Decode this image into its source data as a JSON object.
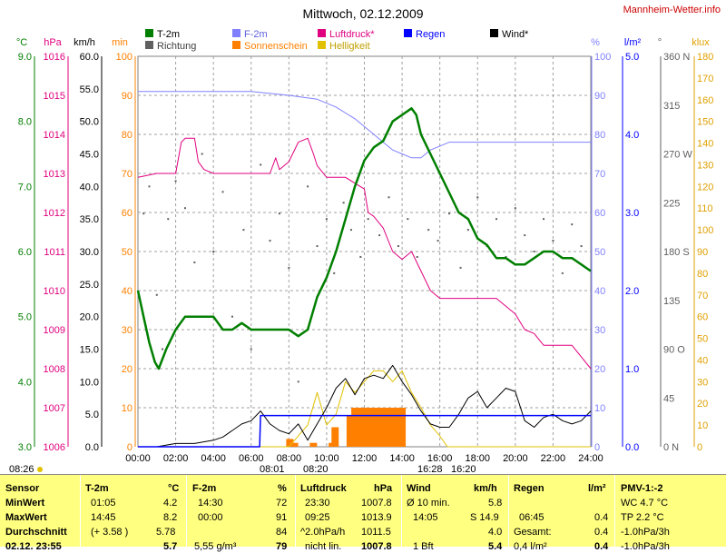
{
  "title": "Mittwoch, 02.12.2009",
  "brand": "Mannheim-Wetter.info",
  "colors": {
    "temp": "#007f00",
    "hum": "#8080ff",
    "pressure": "#e0007f",
    "rain": "#0000ff",
    "sun": "#ff8000",
    "bright": "#e0c000",
    "wind": "#000000",
    "dir": "#606060",
    "grid": "#a0a0a0",
    "table_bg": "#ffff80"
  },
  "legend": {
    "row1": [
      "T-2m",
      "F-2m",
      "Luftdruck*",
      "Regen",
      "Wind*"
    ],
    "row2": [
      "Richtung",
      "Sonnenschein",
      "Helligkeit"
    ]
  },
  "axes": {
    "units": [
      "°C",
      "hPa",
      "km/h",
      "min",
      "%",
      "l/m²",
      "°",
      "klux"
    ],
    "temp_ticks": [
      "9.0",
      "8.0",
      "7.0",
      "6.0",
      "5.0",
      "4.0",
      "3.0"
    ],
    "pressure_ticks": [
      "1016",
      "1015",
      "1014",
      "1013",
      "1012",
      "1011",
      "1010",
      "1009",
      "1008",
      "1007",
      "1006"
    ],
    "wind_ticks": [
      "60.0",
      "55.0",
      "50.0",
      "45.0",
      "40.0",
      "35.0",
      "30.0",
      "25.0",
      "20.0",
      "15.0",
      "10.0",
      "5.0",
      "0.0"
    ],
    "min_ticks": [
      "100",
      "90",
      "80",
      "70",
      "60",
      "50",
      "40",
      "30",
      "20",
      "10",
      "0"
    ],
    "hum_ticks": [
      "100",
      "90",
      "80",
      "70",
      "60",
      "50",
      "40",
      "30",
      "20",
      "10",
      "0"
    ],
    "rain_ticks": [
      "5.0",
      "4.0",
      "3.0",
      "2.0",
      "1.0",
      "0.0"
    ],
    "dir_ticks": [
      "360 N",
      "315",
      "270 W",
      "225",
      "180 S",
      "135",
      "90 O",
      "45",
      "0 N"
    ],
    "klux_ticks": [
      "180",
      "170",
      "160",
      "150",
      "140",
      "130",
      "120",
      "110",
      "100",
      "90",
      "80",
      "70",
      "60",
      "50",
      "40",
      "30",
      "20",
      "10",
      "0"
    ],
    "time_ticks": [
      "00:00",
      "02:00",
      "04:00",
      "06:00",
      "08:00",
      "10:00",
      "12:00",
      "14:00",
      "16:00",
      "18:00",
      "20:00",
      "22:00",
      "24:00"
    ]
  },
  "sun_events": {
    "sunrise_left": "08:01",
    "sunrise_right": "08:20",
    "sunset_left": "16:28",
    "sunset_right": "16:20",
    "daylight_start": "08:26"
  },
  "chart_data": {
    "type": "line",
    "x_unit": "hour",
    "xlim": [
      0,
      24
    ],
    "series": [
      {
        "name": "T-2m",
        "unit": "°C",
        "ylim": [
          3,
          9
        ],
        "x": [
          0,
          0.3,
          0.6,
          0.9,
          1.1,
          1.5,
          2.0,
          2.5,
          3.0,
          3.5,
          4.0,
          4.5,
          5.0,
          5.5,
          6.0,
          6.5,
          7.0,
          7.5,
          8.0,
          8.5,
          9.0,
          9.5,
          10.0,
          10.5,
          11.0,
          11.5,
          12.0,
          12.5,
          13.0,
          13.5,
          14.0,
          14.5,
          14.75,
          15.0,
          15.5,
          16.0,
          16.5,
          17.0,
          17.5,
          18.0,
          18.5,
          19.0,
          19.5,
          20.0,
          20.5,
          21.0,
          21.5,
          22.0,
          22.5,
          23.0,
          23.5,
          24.0
        ],
        "values": [
          5.4,
          5.0,
          4.6,
          4.3,
          4.2,
          4.5,
          4.8,
          5.0,
          5.0,
          5.0,
          5.0,
          4.8,
          4.8,
          4.9,
          4.8,
          4.8,
          4.8,
          4.8,
          4.8,
          4.7,
          4.8,
          5.3,
          5.6,
          6.0,
          6.5,
          7.0,
          7.4,
          7.6,
          7.7,
          8.0,
          8.1,
          8.2,
          8.1,
          7.8,
          7.5,
          7.2,
          6.9,
          6.6,
          6.5,
          6.2,
          6.1,
          5.9,
          5.9,
          5.8,
          5.8,
          5.9,
          6.0,
          6.0,
          5.9,
          5.9,
          5.8,
          5.7
        ]
      },
      {
        "name": "F-2m",
        "unit": "%",
        "ylim": [
          0,
          100
        ],
        "x": [
          0,
          2,
          4,
          6,
          8,
          9.5,
          10.5,
          11.5,
          12,
          12.5,
          13,
          13.5,
          14,
          14.5,
          15,
          15.5,
          16,
          16.5,
          17,
          17.5,
          18,
          19,
          20,
          21,
          22,
          23,
          24
        ],
        "values": [
          91,
          91,
          91,
          91,
          90,
          89,
          87,
          84,
          82,
          80,
          78,
          76,
          75,
          74,
          74,
          76,
          77,
          78,
          78,
          78,
          78,
          78,
          78,
          78,
          78,
          78,
          78
        ]
      },
      {
        "name": "Luftdruck*",
        "unit": "hPa",
        "ylim": [
          1006,
          1016
        ],
        "x": [
          0,
          1.0,
          2.0,
          2.3,
          2.5,
          3.0,
          3.2,
          3.5,
          4.0,
          5.0,
          6.0,
          7.0,
          7.3,
          7.5,
          8.0,
          8.5,
          9.0,
          9.3,
          9.5,
          10.0,
          11.0,
          12.0,
          12.2,
          12.5,
          13.0,
          13.5,
          14.0,
          14.5,
          15.0,
          15.5,
          16.0,
          16.5,
          17.0,
          18.0,
          19.0,
          20.0,
          20.5,
          21.0,
          21.5,
          22.0,
          23.0,
          23.5,
          24.0
        ],
        "values": [
          1012.9,
          1013.0,
          1013.0,
          1013.8,
          1013.9,
          1013.9,
          1013.3,
          1013.1,
          1013.0,
          1013.0,
          1013.0,
          1013.0,
          1013.4,
          1013.1,
          1013.3,
          1013.8,
          1013.9,
          1013.5,
          1013.2,
          1012.9,
          1012.9,
          1012.6,
          1012.0,
          1011.9,
          1011.6,
          1011.0,
          1010.8,
          1011.0,
          1010.5,
          1010.0,
          1009.8,
          1009.8,
          1009.8,
          1009.8,
          1009.8,
          1009.4,
          1009.0,
          1008.9,
          1008.6,
          1008.6,
          1008.6,
          1008.3,
          1008.0
        ]
      },
      {
        "name": "Wind*",
        "unit": "km/h",
        "ylim": [
          0,
          60
        ],
        "x": [
          0,
          1,
          2,
          3,
          4,
          4.5,
          5,
          5.5,
          6,
          6.5,
          7,
          7.5,
          8,
          8.5,
          9,
          9.5,
          10,
          10.5,
          11,
          11.5,
          12,
          12.5,
          13,
          13.5,
          14,
          14.5,
          15,
          15.5,
          16,
          16.5,
          17,
          17.5,
          18,
          18.5,
          19,
          19.5,
          20,
          20.5,
          21,
          21.5,
          22,
          22.5,
          23,
          23.5,
          24
        ],
        "values": [
          0,
          0,
          0.5,
          0.5,
          1,
          1.5,
          2.5,
          3.5,
          4.0,
          5.5,
          3.5,
          2.5,
          2.0,
          3.5,
          1.0,
          3.5,
          6.0,
          9.0,
          10.5,
          8.0,
          10.5,
          11.0,
          10.5,
          12.5,
          10.0,
          8.0,
          5.5,
          3.5,
          3.0,
          3.0,
          5.0,
          7.5,
          8.5,
          6.0,
          7.5,
          9.0,
          8.5,
          4.0,
          3.0,
          4.5,
          5.0,
          4.0,
          3.5,
          4.0,
          5.5
        ]
      },
      {
        "name": "Regen",
        "unit": "l/m²",
        "ylim": [
          0,
          5
        ],
        "x": [
          0,
          6.45,
          6.5,
          24
        ],
        "values": [
          0,
          0,
          0.4,
          0.4
        ]
      },
      {
        "name": "Helligkeit",
        "unit": "klux",
        "ylim": [
          0,
          180
        ],
        "x": [
          0,
          8.0,
          8.5,
          9.0,
          9.5,
          10.0,
          10.5,
          11.0,
          11.5,
          12.0,
          12.5,
          13.0,
          13.5,
          14.0,
          14.5,
          15.0,
          15.5,
          16.0,
          16.4,
          24
        ],
        "values": [
          0,
          0,
          5,
          10,
          25,
          10,
          15,
          30,
          25,
          30,
          35,
          35,
          30,
          35,
          25,
          18,
          10,
          5,
          0,
          0
        ]
      }
    ],
    "sunshine_minutes": {
      "x": [
        8.05,
        8.3,
        9.3,
        10.3,
        10.45,
        11.25,
        11.5,
        11.75,
        11.95,
        12.2,
        12.45,
        12.7,
        12.95,
        13.2,
        13.45,
        13.7,
        14.0
      ],
      "values": [
        2,
        1,
        1,
        1,
        5,
        8,
        10,
        10,
        10,
        10,
        10,
        10,
        10,
        10,
        10,
        10,
        10
      ]
    },
    "wind_direction_deg": {
      "x": [
        0.3,
        0.6,
        1.0,
        1.3,
        1.6,
        2.0,
        2.5,
        3.0,
        3.4,
        4.0,
        4.5,
        5.0,
        5.6,
        6.0,
        6.5,
        7.0,
        7.5,
        8.0,
        8.5,
        9.0,
        9.5,
        10.0,
        10.4,
        10.9,
        11.3,
        11.8,
        12.2,
        12.8,
        13.3,
        13.8,
        14.3,
        14.8,
        15.4,
        15.9,
        16.5,
        17.1,
        17.5,
        18.0,
        18.5,
        19.0,
        19.5,
        20.0,
        20.5,
        21.0,
        21.5,
        22.0,
        22.5,
        23.0,
        23.5
      ],
      "values": [
        215,
        240,
        140,
        90,
        210,
        245,
        220,
        170,
        270,
        180,
        235,
        120,
        200,
        90,
        260,
        190,
        215,
        165,
        60,
        240,
        185,
        210,
        160,
        225,
        200,
        175,
        210,
        195,
        230,
        185,
        210,
        175,
        200,
        190,
        215,
        165,
        200,
        230,
        185,
        210,
        175,
        220,
        195,
        180,
        210,
        190,
        160,
        205,
        185
      ]
    }
  },
  "table": {
    "headers": [
      "Sensor",
      "T-2m",
      "°C",
      "F-2m",
      "%",
      "Luftdruck",
      "hPa",
      "Wind",
      "km/h",
      "Regen",
      "l/m²",
      "PMV-1:-2"
    ],
    "row_labels": [
      "MinWert",
      "MaxWert",
      "Durchschnitt",
      "02.12. 23:55"
    ],
    "temp": [
      [
        "01:05",
        "4.2"
      ],
      [
        "14:45",
        "8.2"
      ],
      [
        "(+ 3.58 )",
        "5.78"
      ],
      [
        "",
        "5.7"
      ]
    ],
    "hum": [
      [
        "14:30",
        "72"
      ],
      [
        "00:00",
        "91"
      ],
      [
        "",
        "84"
      ],
      [
        "5,55 g/m³",
        "79"
      ]
    ],
    "pressure": [
      [
        "23:30",
        "1007.8"
      ],
      [
        "09:25",
        "1013.9"
      ],
      [
        "^2.0hPa/h",
        "1011.5"
      ],
      [
        "nicht lin.",
        "1007.8"
      ]
    ],
    "wind": [
      [
        "Ø 10 min.",
        "5.8"
      ],
      [
        "14:05",
        "S 14.9"
      ],
      [
        "",
        "4.0"
      ],
      [
        "1 Bft",
        "5.4"
      ]
    ],
    "rain": [
      [
        "",
        ""
      ],
      [
        "06:45",
        "0.4"
      ],
      [
        "Gesamt:",
        "0.4"
      ],
      [
        "0,4 l/m²",
        "0.4"
      ]
    ],
    "pmv": [
      "WC 4.7 °C",
      "TP 2.2 °C",
      "-1.0hPa/3h",
      "-1.0hPa/3h"
    ]
  }
}
